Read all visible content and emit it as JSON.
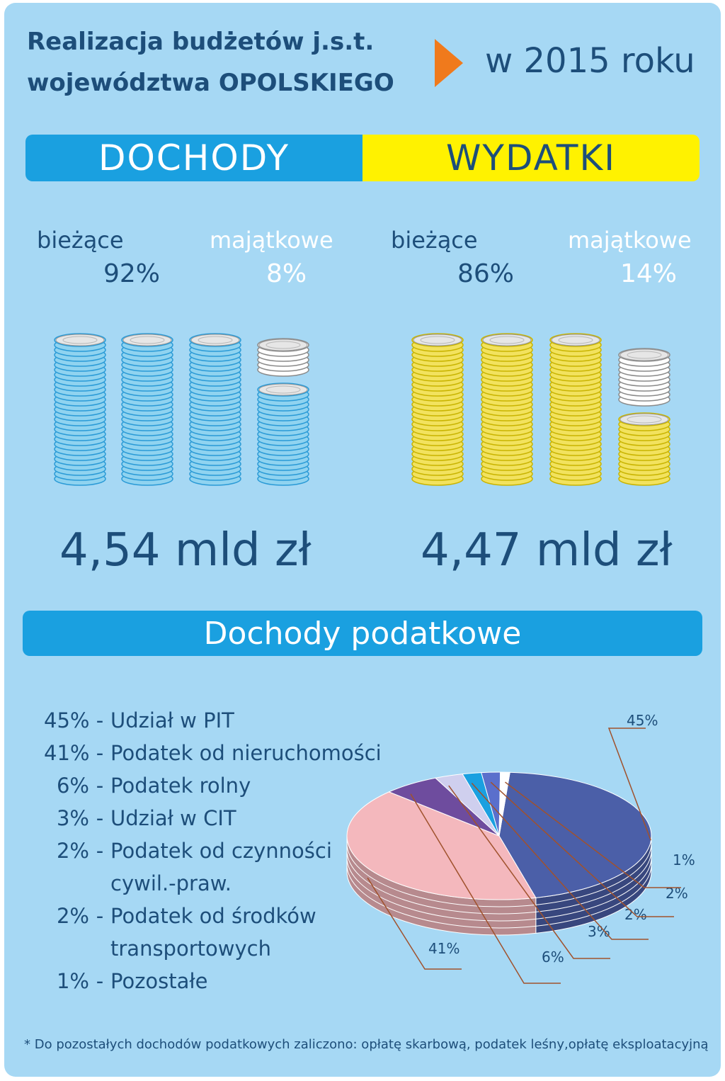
{
  "title_line1": "Realizacja budżetów j.s.t.",
  "title_line2": "województwa OPOLSKIEGO",
  "year_label": "w 2015 roku",
  "split": {
    "left": "DOCHODY",
    "right": "WYDATKI"
  },
  "dochody": {
    "biezace_label": "bieżące",
    "biezace_pct": "92%",
    "majatkowe_label": "majątkowe",
    "majatkowe_pct": "8%",
    "total": "4,54 mld zł",
    "biezace_share": 0.92,
    "majatkowe_share": 0.08,
    "coin_color": "#8fd3f0",
    "coin_edge": "#2a9ad6"
  },
  "wydatki": {
    "biezace_label": "bieżące",
    "biezace_pct": "86%",
    "majatkowe_label": "majątkowe",
    "majatkowe_pct": "14%",
    "total": "4,47 mld zł",
    "biezace_share": 0.86,
    "majatkowe_share": 0.14,
    "coin_color": "#f2e25e",
    "coin_edge": "#c9b400"
  },
  "podatkowe_title": "Dochody podatkowe",
  "legend": [
    {
      "pct": "45%",
      "dash": "-",
      "text": "Udział w PIT"
    },
    {
      "pct": "41%",
      "dash": "-",
      "text": "Podatek od nieruchomości"
    },
    {
      "pct": "6%",
      "dash": "-",
      "text": "Podatek rolny"
    },
    {
      "pct": "3%",
      "dash": "-",
      "text": "Udział w CIT"
    },
    {
      "pct": "2%",
      "dash": "-",
      "text": "Podatek od czynności"
    },
    {
      "pct": "",
      "dash": "",
      "text": "cywil.-praw."
    },
    {
      "pct": "2%",
      "dash": "-",
      "text": "Podatek od środków"
    },
    {
      "pct": "",
      "dash": "",
      "text": "transportowych"
    },
    {
      "pct": "1%",
      "dash": "-",
      "text": "Pozostałe"
    }
  ],
  "footnote": "* Do pozostałych dochodów podatkowych zaliczono: opłatę skarbową, podatek leśny,opłatę eksploatacyjną",
  "chart_data": {
    "type": "pie",
    "title": "Dochody podatkowe",
    "categories": [
      "Udział w PIT",
      "Podatek od nieruchomości",
      "Podatek rolny",
      "Udział w CIT",
      "Podatek od czynności cywil.-praw.",
      "Podatek od środków transportowych",
      "Pozostałe"
    ],
    "values": [
      45,
      41,
      6,
      3,
      2,
      2,
      1
    ],
    "labels": [
      "45%",
      "41%",
      "6%",
      "3%",
      "2%",
      "2%",
      "1%"
    ],
    "colors": [
      "#4b5fa8",
      "#f4b8bd",
      "#6e4c9e",
      "#cfcfee",
      "#1aa0e0",
      "#5a6fcc",
      "#ffffff"
    ]
  }
}
